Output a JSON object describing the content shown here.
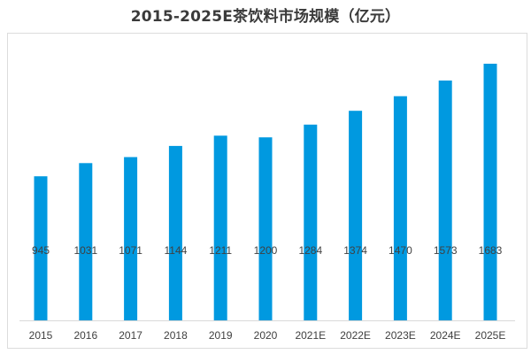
{
  "chart_data": {
    "type": "bar",
    "title": "2015-2025E茶饮料市场规模（亿元）",
    "xlabel": "",
    "ylabel": "",
    "categories": [
      "2015",
      "2016",
      "2017",
      "2018",
      "2019",
      "2020",
      "2021E",
      "2022E",
      "2023E",
      "2024E",
      "2025E"
    ],
    "values": [
      945,
      1031,
      1071,
      1144,
      1211,
      1200,
      1284,
      1374,
      1470,
      1573,
      1683
    ],
    "data_labels": [
      "945",
      "1031",
      "1071",
      "1144",
      "1211",
      "1200",
      "1284",
      "1374",
      "1470",
      "1573",
      "1683"
    ],
    "ylim": [
      0,
      1700
    ],
    "y_axis_shown": false,
    "grid": false,
    "legend": "none",
    "bar_color": "#0099e0",
    "axis_color": "#d9d9d9"
  }
}
